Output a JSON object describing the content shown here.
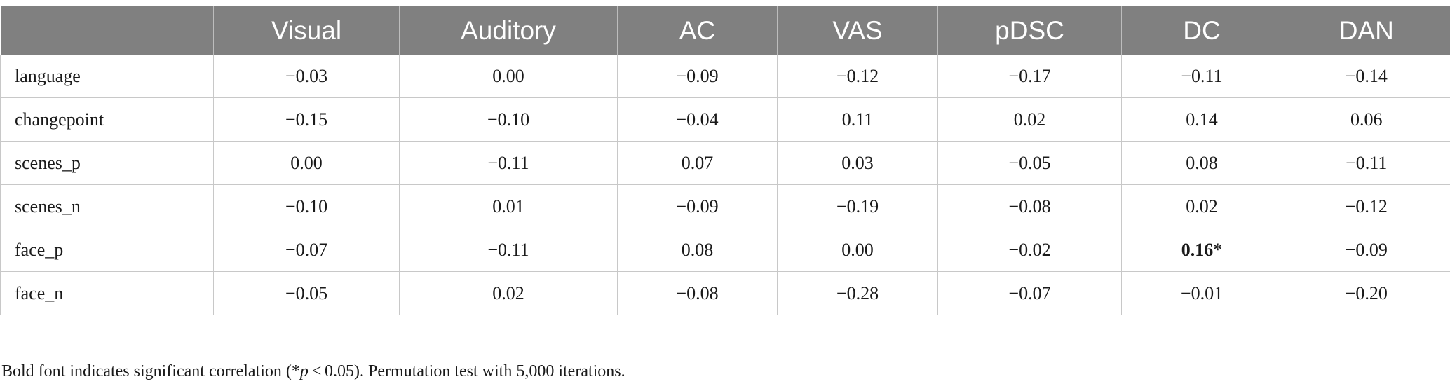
{
  "table": {
    "columns": [
      "",
      "Visual",
      "Auditory",
      "AC",
      "VAS",
      "pDSC",
      "DC",
      "DAN"
    ],
    "rows": [
      {
        "label": "language",
        "cells": [
          "−0.03",
          "0.00",
          "−0.09",
          "−0.12",
          "−0.17",
          "−0.11",
          "−0.14"
        ]
      },
      {
        "label": "changepoint",
        "cells": [
          "−0.15",
          "−0.10",
          "−0.04",
          "0.11",
          "0.02",
          "0.14",
          "0.06"
        ]
      },
      {
        "label": "scenes_p",
        "cells": [
          "0.00",
          "−0.11",
          "0.07",
          "0.03",
          "−0.05",
          "0.08",
          "−0.11"
        ]
      },
      {
        "label": "scenes_n",
        "cells": [
          "−0.10",
          "0.01",
          "−0.09",
          "−0.19",
          "−0.08",
          "0.02",
          "−0.12"
        ]
      },
      {
        "label": "face_p",
        "cells": [
          "−0.07",
          "−0.11",
          "0.08",
          "0.00",
          "−0.02",
          "0.16",
          "−0.09"
        ],
        "significant_cell": 5,
        "significance_mark": "*"
      },
      {
        "label": "face_n",
        "cells": [
          "−0.05",
          "0.02",
          "−0.08",
          "−0.28",
          "−0.07",
          "−0.01",
          "−0.20"
        ]
      }
    ]
  },
  "footnote": {
    "before": "Bold font indicates significant correlation (*",
    "italic": "p",
    "after": " < 0.05). Permutation test with 5,000 iterations."
  }
}
